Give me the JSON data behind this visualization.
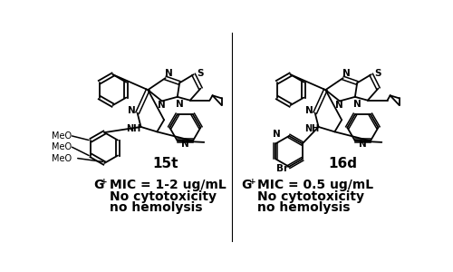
{
  "background_color": "#ffffff",
  "text_color": "#000000",
  "left_label": "15t",
  "right_label": "16d",
  "left_mic": "MIC = 1-2 ug/mL",
  "right_mic": "MIC = 0.5 ug/mL",
  "line2": "No cytotoxicity",
  "line3": "no hemolysis",
  "bold_fontsize": 10,
  "label_fontsize": 11
}
